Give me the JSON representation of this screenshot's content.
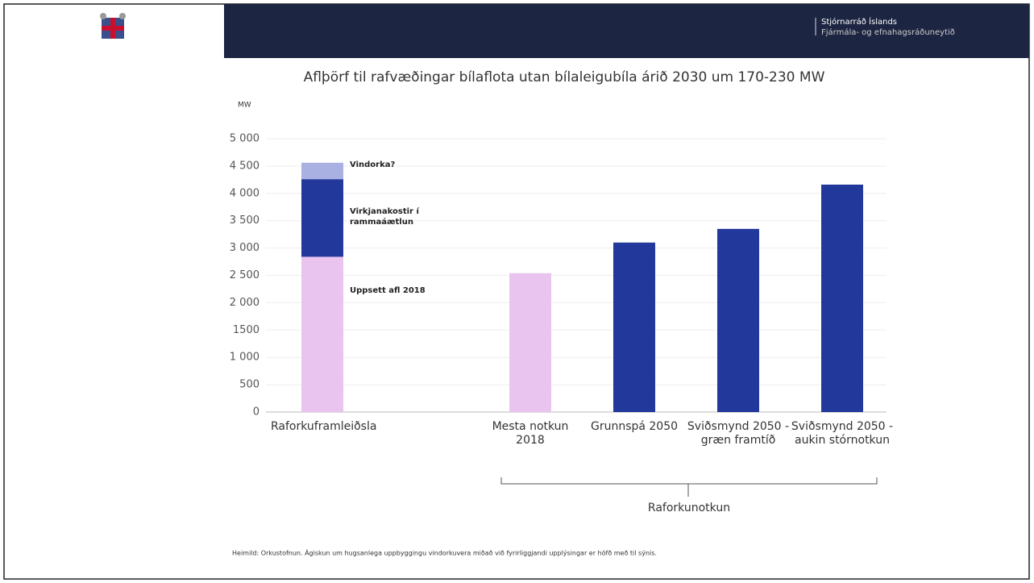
{
  "header": {
    "org": "Stjórnarráð Íslands",
    "ministry": "Fjármála- og efnahagsráðuneytið"
  },
  "chart_data": {
    "type": "stacked-bar",
    "title": "Aflþörf til rafvæðingar bílaflota utan bílaleigubíla árið 2030 um 170-230 MW",
    "y_label": "MW",
    "categories": [
      "Raforkuframleiðsla",
      null,
      "Mesta notkun 2018",
      "Grunnspá 2050",
      "Sviðsmynd 2050 - græn framtíð",
      "Sviðsmynd 2050 - aukin stórnotkun"
    ],
    "series": [
      {
        "name": "Uppsett afl 2018",
        "color": "#e9c4ee",
        "values": [
          2840,
          null,
          null,
          null,
          null,
          null
        ]
      },
      {
        "name": "Virkjanakostir í rammaáætlun",
        "color": "#22389a",
        "values": [
          1420,
          null,
          null,
          null,
          null,
          null
        ]
      },
      {
        "name": "Vindorka?",
        "color": "#a9b0e2",
        "values": [
          300,
          null,
          null,
          null,
          null,
          null
        ]
      },
      {
        "colors": [
          null,
          null,
          "#e9c4ee",
          "#22389a",
          "#22389a",
          "#22389a"
        ],
        "values": [
          null,
          null,
          2540,
          3100,
          3350,
          4160
        ]
      }
    ],
    "ylim": [
      0,
      5000
    ],
    "yticks": [
      0,
      500,
      {
        "value": 1000,
        "label": "1 000"
      },
      1500,
      {
        "value": 2000,
        "label": "2 000"
      },
      {
        "value": 2500,
        "label": "2 500"
      },
      {
        "value": 3000,
        "label": "3 000"
      },
      {
        "value": 3500,
        "label": "3 500"
      },
      {
        "value": 4000,
        "label": "4 000"
      },
      {
        "value": 4500,
        "label": "4 500"
      },
      {
        "value": 5000,
        "label": "5 000"
      }
    ],
    "grid": true,
    "group_label": "Raforkunotkun",
    "source": "Heimild: Orkustofnun. Ágiskun um hugsanlega uppbyggingu vindorkuvera miðað við fyrirliggjandi upplýsingar er höfð með til sýnis."
  }
}
